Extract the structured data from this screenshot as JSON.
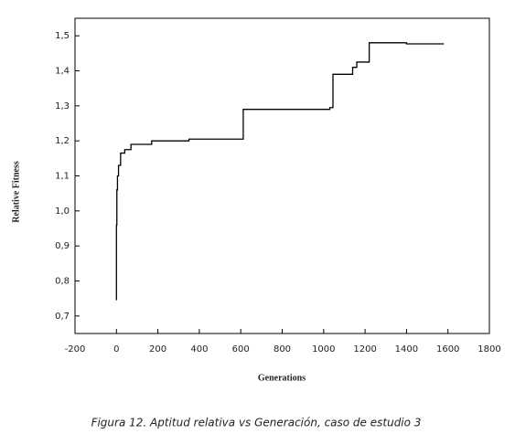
{
  "chart_data": {
    "type": "line",
    "x_label": "Generations",
    "y_label": "Relative Fitness",
    "caption": "Figura 12. Aptitud relativa vs Generación, caso de estudio 3",
    "x": [
      0,
      0,
      2,
      2,
      5,
      5,
      10,
      10,
      20,
      20,
      40,
      40,
      70,
      70,
      170,
      170,
      350,
      350,
      612,
      612,
      1030,
      1030,
      1045,
      1045,
      1140,
      1140,
      1160,
      1160,
      1220,
      1220,
      1400,
      1400,
      1580
    ],
    "values": [
      0.745,
      0.96,
      0.96,
      1.06,
      1.06,
      1.1,
      1.1,
      1.13,
      1.13,
      1.165,
      1.165,
      1.175,
      1.175,
      1.19,
      1.19,
      1.2,
      1.2,
      1.205,
      1.205,
      1.29,
      1.29,
      1.295,
      1.295,
      1.39,
      1.39,
      1.41,
      1.41,
      1.425,
      1.425,
      1.48,
      1.48,
      1.477,
      1.477
    ],
    "color": "#000000",
    "xlim": [
      -200,
      1800
    ],
    "xticks": [
      -200,
      0,
      200,
      400,
      600,
      800,
      1000,
      1200,
      1400,
      1600,
      1800
    ],
    "ylim": [
      0.65,
      1.55
    ],
    "yticks": [
      {
        "value": 0.7,
        "label": "0,7"
      },
      {
        "value": 0.8,
        "label": "0,8"
      },
      {
        "value": 0.9,
        "label": "0,9"
      },
      {
        "value": 1.0,
        "label": "1,0"
      },
      {
        "value": 1.1,
        "label": "1,1"
      },
      {
        "value": 1.2,
        "label": "1,2"
      },
      {
        "value": 1.3,
        "label": "1,3"
      },
      {
        "value": 1.4,
        "label": "1,4"
      },
      {
        "value": 1.5,
        "label": "1,5"
      }
    ],
    "grid": false
  }
}
